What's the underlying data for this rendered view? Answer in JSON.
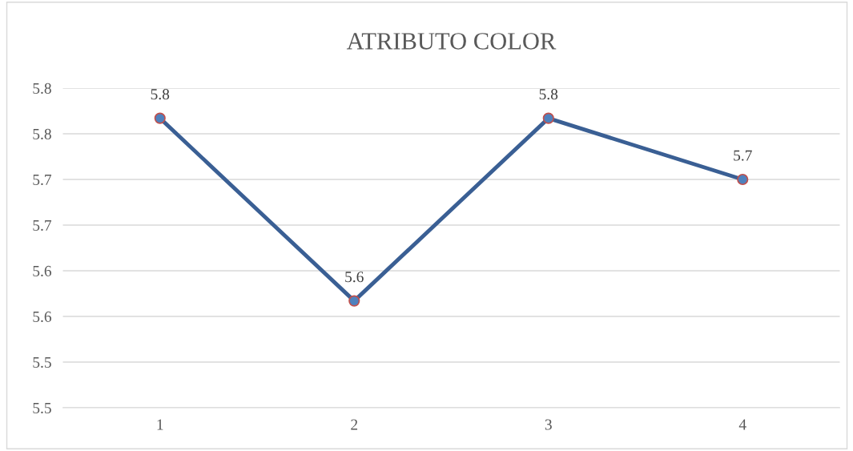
{
  "chart_data": {
    "type": "line",
    "title": "ATRIBUTO COLOR",
    "categories": [
      "1",
      "2",
      "3",
      "4"
    ],
    "series": [
      {
        "color": "#3a5f94",
        "values": [
          5.767,
          5.567,
          5.767,
          5.7
        ],
        "value_labels": [
          "5.8",
          "5.6",
          "5.8",
          "5.7"
        ]
      }
    ],
    "ylim": [
      5.45,
      5.8
    ],
    "yticks": [
      {
        "value": 5.45,
        "label": "5.5"
      },
      {
        "value": 5.5,
        "label": "5.5"
      },
      {
        "value": 5.55,
        "label": "5.6"
      },
      {
        "value": 5.6,
        "label": "5.6"
      },
      {
        "value": 5.65,
        "label": "5.7"
      },
      {
        "value": 5.7,
        "label": "5.7"
      },
      {
        "value": 5.75,
        "label": "5.8"
      },
      {
        "value": 5.8,
        "label": "5.8"
      }
    ],
    "grid": "y",
    "marker": "circle",
    "line_style": "solid",
    "legend": false
  }
}
